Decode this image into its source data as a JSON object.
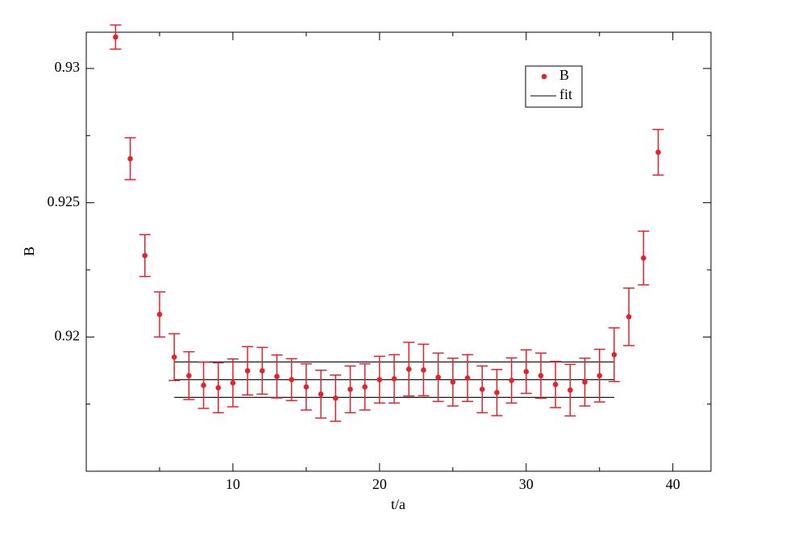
{
  "chart_data": {
    "type": "scatter",
    "x_label": "t/a",
    "y_label": "B",
    "xlim": [
      0,
      42.6
    ],
    "ylim": [
      0.915,
      0.93135
    ],
    "xticks": [
      10,
      20,
      30,
      40
    ],
    "yticks": [
      0.92,
      0.925,
      0.93
    ],
    "xminorticks": [
      5,
      15,
      25,
      35
    ],
    "yminorticks": [
      0.9175,
      0.9225,
      0.9275
    ],
    "legend": "upper right",
    "series": [
      {
        "name": "B",
        "color": "#e8202a",
        "x": [
          2,
          3,
          4,
          5,
          6,
          7,
          8,
          9,
          10,
          11,
          12,
          13,
          14,
          15,
          16,
          17,
          18,
          19,
          20,
          21,
          22,
          23,
          24,
          25,
          26,
          27,
          28,
          29,
          30,
          31,
          32,
          33,
          34,
          35,
          36,
          37,
          38,
          39
        ],
        "values": [
          0.93117,
          0.92664,
          0.92303,
          0.92084,
          0.91925,
          0.91856,
          0.9182,
          0.91811,
          0.91829,
          0.91874,
          0.91874,
          0.91853,
          0.91841,
          0.91814,
          0.91787,
          0.91772,
          0.91805,
          0.91814,
          0.91841,
          0.91844,
          0.9188,
          0.91877,
          0.9185,
          0.91832,
          0.91847,
          0.91805,
          0.91793,
          0.91838,
          0.91871,
          0.91856,
          0.91823,
          0.91802,
          0.91832,
          0.91856,
          0.91934,
          0.92075,
          0.92294,
          0.92688
        ],
        "errors": [
          0.00045,
          0.00078,
          0.00078,
          0.00084,
          0.00087,
          0.00089,
          0.00086,
          0.00093,
          0.00089,
          0.0009,
          0.00087,
          0.0008,
          0.00078,
          0.00086,
          0.00089,
          0.00086,
          0.00087,
          0.00086,
          0.00087,
          0.0009,
          0.001,
          0.00096,
          0.0009,
          0.00089,
          0.00087,
          0.00087,
          0.00086,
          0.00084,
          0.00081,
          0.00084,
          0.00086,
          0.00096,
          0.00089,
          0.00098,
          0.001,
          0.00107,
          0.001,
          0.00085
        ]
      }
    ],
    "fit": {
      "name": "fit",
      "color": "#000000",
      "x": [
        6,
        36
      ],
      "value": 0.91841,
      "error": 0.00066
    }
  }
}
